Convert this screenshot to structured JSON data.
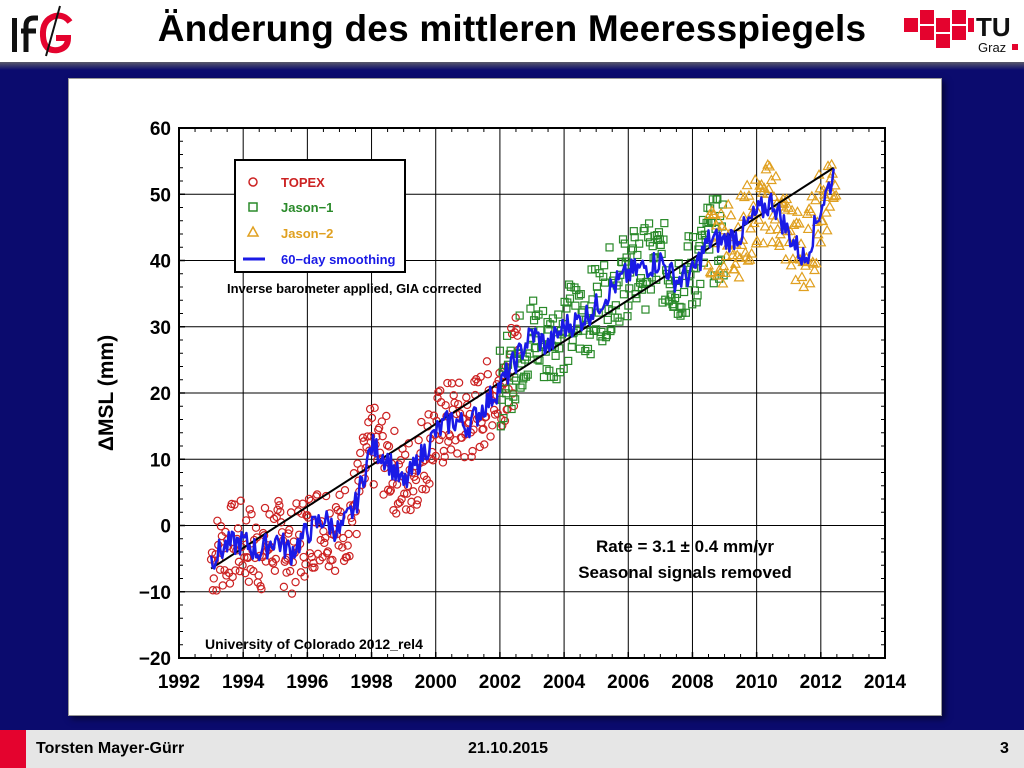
{
  "header": {
    "title": "Änderung des mittleren Meeresspiegels",
    "logo_left_text": "IfG",
    "logo_right_text": "TU",
    "logo_right_subtext": "Graz"
  },
  "footer": {
    "author": "Torsten Mayer-Gürr",
    "date": "21.10.2015",
    "page": "3"
  },
  "colors": {
    "background": "#0b0b6e",
    "topex": "#cc2222",
    "jason1": "#2a8a2a",
    "jason2": "#e0a020",
    "smoothing": "#1a1ae6",
    "trend": "#000000",
    "accent_red": "#e4032e"
  },
  "chart_data": {
    "type": "scatter",
    "ylabel": "ΔMSL  (mm)",
    "xlabel": "",
    "xlim": [
      1992,
      2014
    ],
    "ylim": [
      -20,
      60
    ],
    "xticks": [
      1992,
      1994,
      1996,
      1998,
      2000,
      2002,
      2004,
      2006,
      2008,
      2010,
      2012,
      2014
    ],
    "yticks": [
      -20,
      -10,
      0,
      10,
      20,
      30,
      40,
      50,
      60
    ],
    "ytick_labels": [
      "−20",
      "−10",
      "0",
      "10",
      "20",
      "30",
      "40",
      "50",
      "60"
    ],
    "grid": true,
    "legend_position": "top-left",
    "legend": [
      {
        "name": "TOPEX",
        "marker": "circle"
      },
      {
        "name": "Jason−1",
        "marker": "square"
      },
      {
        "name": "Jason−2",
        "marker": "triangle"
      },
      {
        "name": "60−day smoothing",
        "marker": "line"
      }
    ],
    "annotations": {
      "legend_note": "Inverse barometer applied, GIA corrected",
      "rate": "Rate = 3.1 ± 0.4 mm/yr",
      "seasonal": "Seasonal signals removed",
      "source": "University of Colorado 2012_rel4"
    },
    "trend": {
      "x": [
        1993.0,
        2012.4
      ],
      "y": [
        -6.5,
        54.0
      ]
    },
    "series": [
      {
        "name": "TOPEX",
        "marker": "circle",
        "x_range": [
          1993.0,
          2002.6
        ],
        "sample_x": [
          1993.0,
          1994.0,
          1995.0,
          1996.0,
          1997.0,
          1998.0,
          1999.0,
          2000.0,
          2001.0,
          2002.0
        ],
        "sample_y": [
          -5.0,
          -2.5,
          -3.0,
          -1.0,
          2.0,
          12.0,
          9.0,
          14.0,
          16.0,
          22.0
        ]
      },
      {
        "name": "Jason−1",
        "marker": "square",
        "x_range": [
          2002.0,
          2009.0
        ],
        "sample_x": [
          2002.0,
          2003.0,
          2004.0,
          2005.0,
          2006.0,
          2007.0,
          2008.0,
          2009.0
        ],
        "sample_y": [
          24.0,
          27.0,
          30.0,
          33.0,
          38.0,
          39.0,
          37.0,
          43.0
        ]
      },
      {
        "name": "Jason−2",
        "marker": "triangle",
        "x_range": [
          2008.5,
          2012.5
        ],
        "sample_x": [
          2008.5,
          2009.0,
          2010.0,
          2011.0,
          2011.5,
          2012.0,
          2012.4
        ],
        "sample_y": [
          42.0,
          44.0,
          48.0,
          45.0,
          40.0,
          50.0,
          53.0
        ]
      },
      {
        "name": "60−day smoothing",
        "marker": "line",
        "x": [
          1993.0,
          1993.5,
          1994.0,
          1994.5,
          1995.0,
          1995.5,
          1996.0,
          1996.5,
          1997.0,
          1997.5,
          1998.0,
          1998.5,
          1999.0,
          1999.5,
          2000.0,
          2000.5,
          2001.0,
          2001.5,
          2002.0,
          2002.5,
          2003.0,
          2003.5,
          2004.0,
          2004.5,
          2005.0,
          2005.5,
          2006.0,
          2006.5,
          2007.0,
          2007.5,
          2008.0,
          2008.5,
          2009.0,
          2009.5,
          2010.0,
          2010.5,
          2011.0,
          2011.5,
          2012.0,
          2012.4
        ],
        "y": [
          -5.0,
          -3.0,
          -2.5,
          -4.0,
          -2.0,
          -4.0,
          -1.0,
          1.0,
          -1.0,
          3.0,
          12.0,
          10.0,
          6.0,
          10.0,
          14.0,
          16.0,
          15.0,
          18.0,
          21.0,
          25.0,
          29.0,
          27.0,
          30.0,
          31.0,
          33.0,
          36.0,
          38.0,
          39.0,
          40.0,
          37.0,
          38.0,
          43.0,
          43.0,
          44.0,
          47.0,
          49.0,
          44.0,
          40.0,
          48.0,
          53.0
        ]
      }
    ]
  }
}
